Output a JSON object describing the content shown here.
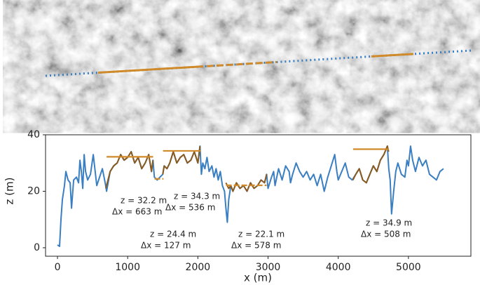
{
  "chart_data": {
    "type": "line",
    "xlabel": "x (m)",
    "ylabel": "z (m)",
    "xlim": [
      -170,
      5890
    ],
    "ylim": [
      -3,
      40
    ],
    "xticks": [
      0,
      1000,
      2000,
      3000,
      4000,
      5000
    ],
    "yticks": [
      0,
      20,
      40
    ],
    "series": [
      {
        "color": "#3a7fc1",
        "x": [
          0,
          30,
          50,
          70,
          100,
          120,
          150,
          180,
          200,
          230,
          270,
          300,
          320,
          340,
          360,
          380,
          400,
          430,
          470,
          510,
          560,
          600,
          640,
          680,
          700,
          750,
          800,
          850,
          900,
          950,
          1000,
          1050,
          1100,
          1150,
          1200,
          1250,
          1300,
          1340,
          1360,
          1380,
          1420,
          1460,
          1500,
          1520,
          1560,
          1600,
          1650,
          1700,
          1750,
          1800,
          1850,
          1900,
          1950,
          2000,
          2030,
          2050,
          2070,
          2100,
          2130,
          2160,
          2200,
          2230,
          2260,
          2290,
          2320,
          2350,
          2380,
          2400,
          2420,
          2440,
          2470,
          2500,
          2550,
          2600,
          2650,
          2700,
          2750,
          2800,
          2850,
          2900,
          2950,
          2980,
          3000,
          3050,
          3080,
          3100,
          3150,
          3200,
          3250,
          3300,
          3320,
          3350,
          3400,
          3450,
          3500,
          3550,
          3600,
          3650,
          3700,
          3750,
          3800,
          3850,
          3900,
          3950,
          3980,
          4000,
          4050,
          4100,
          4150,
          4200,
          4250,
          4300,
          4350,
          4400,
          4450,
          4500,
          4550,
          4600,
          4650,
          4700,
          4720,
          4740,
          4760,
          4790,
          4820,
          4850,
          4900,
          4950,
          4980,
          5000,
          5030,
          5060,
          5100,
          5150,
          5200,
          5250,
          5300,
          5350,
          5400,
          5450,
          5500
        ],
        "values": [
          1,
          0.5,
          10,
          17,
          22,
          27,
          24,
          23,
          14,
          24,
          25,
          23,
          31,
          27,
          21,
          33,
          27,
          24,
          26,
          33,
          22,
          25,
          28,
          23,
          20,
          27,
          29,
          30,
          33,
          31,
          32,
          34,
          30,
          32,
          28,
          30,
          33,
          27,
          31,
          25,
          24,
          25,
          26,
          29,
          28,
          30,
          34,
          30,
          32,
          33,
          30,
          31,
          34,
          30,
          36,
          26,
          30,
          28,
          32,
          27,
          29,
          25,
          28,
          24,
          27,
          22,
          20,
          14,
          9,
          17,
          22,
          20,
          23,
          21,
          22,
          20,
          23,
          21,
          22,
          24,
          23,
          26,
          21,
          25,
          27,
          22,
          28,
          24,
          29,
          27,
          23,
          26,
          30,
          27,
          25,
          27,
          24,
          26,
          22,
          26,
          20,
          25,
          29,
          33,
          27,
          24,
          27,
          30,
          25,
          24,
          26,
          28,
          24,
          23,
          26,
          29,
          27,
          31,
          33,
          36,
          28,
          24,
          12,
          20,
          27,
          30,
          26,
          25,
          31,
          29,
          36,
          31,
          27,
          32,
          29,
          31,
          26,
          25,
          24,
          27,
          28
        ]
      },
      {
        "color": "#8b5a1e",
        "x": [
          690,
          720,
          750,
          800,
          850,
          900,
          950,
          1000,
          1050,
          1100,
          1150,
          1200,
          1250,
          1300,
          1340,
          1360
        ],
        "values": [
          21,
          24,
          27,
          29,
          30,
          33,
          31,
          32,
          34,
          30,
          32,
          28,
          30,
          33,
          27,
          31
        ]
      },
      {
        "color": "#8b5a1e",
        "x": [
          1500,
          1520,
          1560,
          1600,
          1650,
          1700,
          1750,
          1800,
          1850,
          1900,
          1950,
          2000,
          2030
        ],
        "values": [
          26,
          29,
          28,
          30,
          34,
          30,
          32,
          33,
          30,
          31,
          34,
          30,
          36
        ]
      },
      {
        "color": "#8b5a1e",
        "x": [
          2400,
          2440,
          2470,
          2500,
          2550,
          2600,
          2650,
          2700,
          2750,
          2800,
          2850,
          2900,
          2950,
          2980
        ],
        "values": [
          23,
          21,
          22,
          20,
          23,
          21,
          22,
          20,
          23,
          21,
          22,
          24,
          23,
          26
        ]
      },
      {
        "color": "#8b5a1e",
        "x": [
          4210,
          4250,
          4300,
          4350,
          4400,
          4450,
          4500,
          4550,
          4600,
          4650,
          4700,
          4718
        ],
        "values": [
          24,
          26,
          28,
          24,
          23,
          26,
          29,
          27,
          31,
          33,
          36,
          34
        ]
      }
    ],
    "fits": [
      {
        "x": [
          700,
          1363
        ],
        "z": 32.2,
        "dashed": false
      },
      {
        "x": [
          1383,
          1510
        ],
        "z": 24.4,
        "dashed": true
      },
      {
        "x": [
          1504,
          2040
        ],
        "z": 34.3,
        "dashed": false
      },
      {
        "x": [
          2402,
          2980
        ],
        "z": 22.1,
        "dashed": true
      },
      {
        "x": [
          4212,
          4720
        ],
        "z": 34.9,
        "dashed": false
      }
    ],
    "fit_color": "#d08a2a",
    "annotations": [
      [
        "z = 32.2 m",
        "Δx = 663 m"
      ],
      [
        "z = 24.4 m",
        "Δx = 127 m"
      ],
      [
        "z = 34.3 m",
        "Δx = 536 m"
      ],
      [
        "z = 22.1 m",
        "Δx = 578 m"
      ],
      [
        "z = 34.9 m",
        "Δx = 508 m"
      ]
    ]
  }
}
